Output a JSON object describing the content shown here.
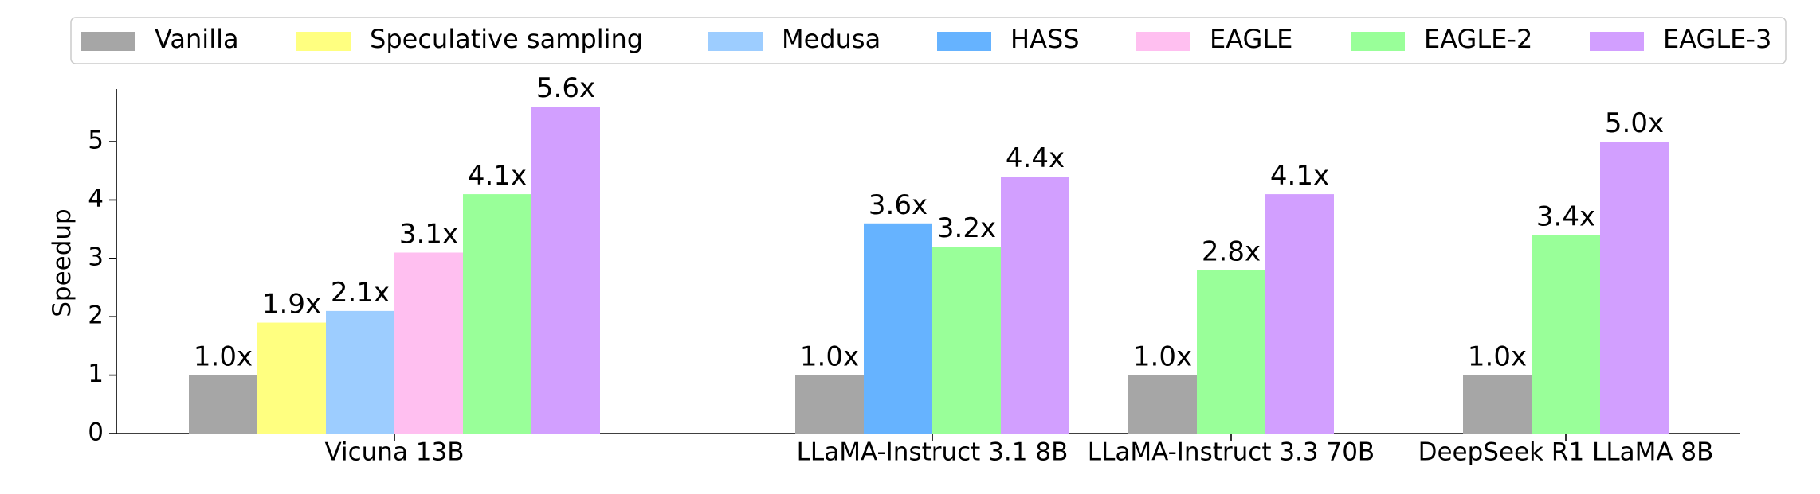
{
  "chart_data": {
    "type": "bar",
    "ylabel": "Speedup",
    "xlabel": "",
    "title": "",
    "ylim": [
      0,
      5.9
    ],
    "yticks": [
      0,
      1,
      2,
      3,
      4,
      5
    ],
    "legend_position": "top",
    "grid": false,
    "series": [
      {
        "name": "Vanilla",
        "color": "#a6a6a6"
      },
      {
        "name": "Speculative sampling",
        "color": "#ffff80"
      },
      {
        "name": "Medusa",
        "color": "#9dcdff"
      },
      {
        "name": "HASS",
        "color": "#66b3ff"
      },
      {
        "name": "EAGLE",
        "color": "#ffbff0"
      },
      {
        "name": "EAGLE-2",
        "color": "#99ff99"
      },
      {
        "name": "EAGLE-3",
        "color": "#d29fff"
      }
    ],
    "groups": [
      {
        "category": "Vicuna 13B",
        "bars": [
          {
            "series": "Vanilla",
            "value": 1.0,
            "label": "1.0x"
          },
          {
            "series": "Speculative sampling",
            "value": 1.9,
            "label": "1.9x"
          },
          {
            "series": "Medusa",
            "value": 2.1,
            "label": "2.1x"
          },
          {
            "series": "EAGLE",
            "value": 3.1,
            "label": "3.1x"
          },
          {
            "series": "EAGLE-2",
            "value": 4.1,
            "label": "4.1x"
          },
          {
            "series": "EAGLE-3",
            "value": 5.6,
            "label": "5.6x"
          }
        ]
      },
      {
        "category": "LLaMA-Instruct 3.1 8B",
        "bars": [
          {
            "series": "Vanilla",
            "value": 1.0,
            "label": "1.0x"
          },
          {
            "series": "HASS",
            "value": 3.6,
            "label": "3.6x"
          },
          {
            "series": "EAGLE-2",
            "value": 3.2,
            "label": "3.2x"
          },
          {
            "series": "EAGLE-3",
            "value": 4.4,
            "label": "4.4x"
          }
        ]
      },
      {
        "category": "LLaMA-Instruct 3.3 70B",
        "bars": [
          {
            "series": "Vanilla",
            "value": 1.0,
            "label": "1.0x"
          },
          {
            "series": "EAGLE-2",
            "value": 2.8,
            "label": "2.8x"
          },
          {
            "series": "EAGLE-3",
            "value": 4.1,
            "label": "4.1x"
          }
        ]
      },
      {
        "category": "DeepSeek R1 LLaMA 8B",
        "bars": [
          {
            "series": "Vanilla",
            "value": 1.0,
            "label": "1.0x"
          },
          {
            "series": "EAGLE-2",
            "value": 3.4,
            "label": "3.4x"
          },
          {
            "series": "EAGLE-3",
            "value": 5.0,
            "label": "5.0x"
          }
        ]
      }
    ]
  }
}
